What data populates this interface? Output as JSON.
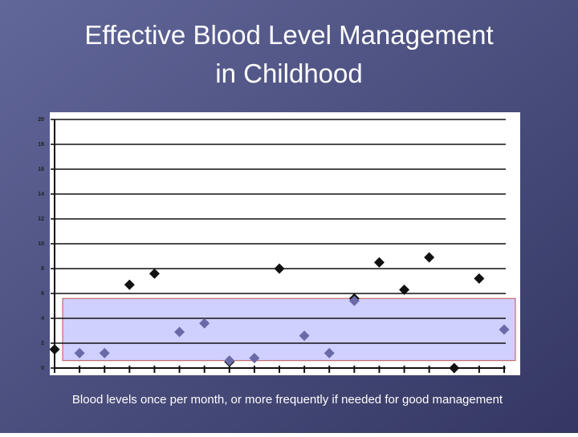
{
  "chart_data": {
    "type": "scatter",
    "title": "Effective Blood Level Management in Childhood",
    "caption": "Blood levels once per month, or more frequently if needed for good management",
    "xlim": [
      0,
      18
    ],
    "xticks": [
      0,
      1,
      2,
      3,
      4,
      5,
      6,
      7,
      8,
      9,
      10,
      11,
      12,
      13,
      14,
      15,
      16,
      17,
      18
    ],
    "ylim": [
      0,
      20
    ],
    "yticks": [
      0,
      2,
      4,
      6,
      8,
      10,
      12,
      14,
      16,
      18,
      20
    ],
    "grid": true,
    "band": {
      "from": 0.6,
      "to": 5.6,
      "color": "#c8c8ff"
    },
    "series": [
      {
        "color": "#111111",
        "x": [
          0,
          3,
          4,
          7,
          9,
          12,
          13,
          14,
          15,
          16,
          17
        ],
        "values": [
          1.5,
          6.7,
          7.6,
          0.5,
          8.0,
          5.6,
          8.5,
          6.3,
          8.9,
          0,
          7.2
        ]
      },
      {
        "color": "#6a6aa8",
        "x": [
          1,
          2,
          5,
          6,
          7,
          8,
          10,
          11,
          12,
          18
        ],
        "values": [
          1.2,
          1.2,
          2.9,
          3.6,
          0.6,
          0.8,
          2.6,
          1.2,
          5.4,
          3.1
        ]
      }
    ]
  }
}
